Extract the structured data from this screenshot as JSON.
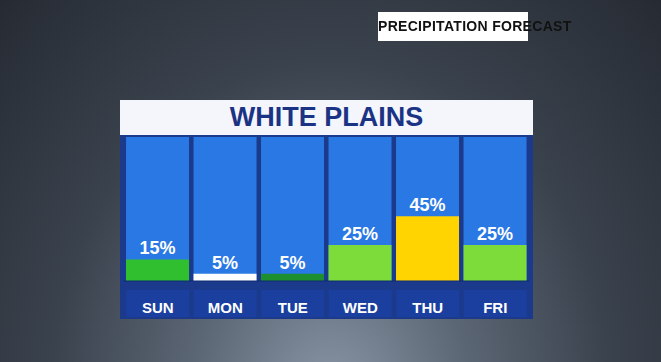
{
  "chart_data": {
    "type": "bar",
    "title": "WHITE PLAINS",
    "subtitle": "PRECIPITATION FORECAST",
    "categories": [
      "SUN",
      "MON",
      "TUE",
      "WED",
      "THU",
      "FRI"
    ],
    "values": [
      15,
      5,
      5,
      25,
      45,
      25
    ],
    "value_labels": [
      "15%",
      "5%",
      "5%",
      "25%",
      "45%",
      "25%"
    ],
    "colors": [
      "#2fbf2f",
      "#ffffff",
      "#1e8f2e",
      "#7ddc3a",
      "#ffd400",
      "#7ddc3a"
    ],
    "ylim": [
      0,
      100
    ],
    "data_labels": true,
    "tick_labels": "x",
    "grid": false
  }
}
